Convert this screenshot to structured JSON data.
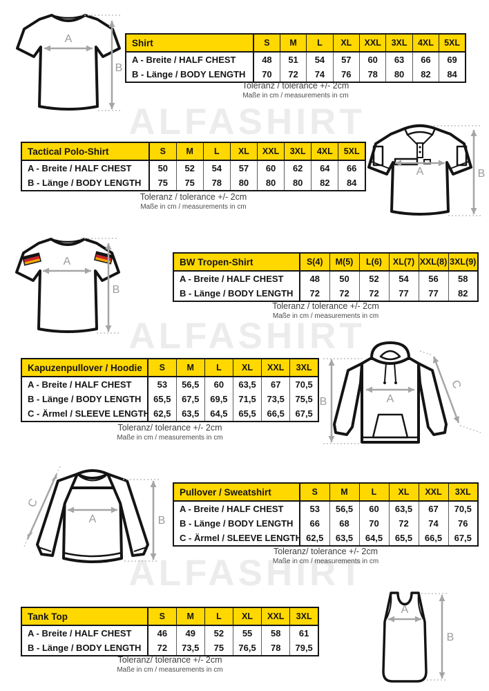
{
  "watermark_text": "ALFASHIRT",
  "arrow_labels": {
    "a": "A",
    "b": "B",
    "c": "C"
  },
  "colors": {
    "header_yellow": "#ffd800",
    "border_black": "#141414",
    "arrow_gray": "#a5a5a5",
    "watermark_gray": "#ececec",
    "flag_black": "#141414",
    "flag_red": "#cc2229",
    "flag_gold": "#f2a800"
  },
  "tables": [
    {
      "title": "Shirt",
      "sizes": [
        "S",
        "M",
        "L",
        "XL",
        "XXL",
        "3XL",
        "4XL",
        "5XL"
      ],
      "rows": [
        {
          "label": "A -  Breite / HALF CHEST",
          "values": [
            "48",
            "51",
            "54",
            "57",
            "60",
            "63",
            "66",
            "69"
          ]
        },
        {
          "label": "B -  Länge / BODY LENGTH",
          "values": [
            "70",
            "72",
            "74",
            "76",
            "78",
            "80",
            "82",
            "84"
          ]
        }
      ],
      "tolerance": "Toleranz / tolerance +/- 2cm",
      "units": "Maße in cm / measurements in cm"
    },
    {
      "title": "Tactical Polo-Shirt",
      "sizes": [
        "S",
        "M",
        "L",
        "XL",
        "XXL",
        "3XL",
        "4XL",
        "5XL"
      ],
      "rows": [
        {
          "label": "A -  Breite / HALF CHEST",
          "values": [
            "50",
            "52",
            "54",
            "57",
            "60",
            "62",
            "64",
            "66"
          ]
        },
        {
          "label": "B -  Länge / BODY LENGTH",
          "values": [
            "75",
            "75",
            "78",
            "80",
            "80",
            "80",
            "82",
            "84"
          ]
        }
      ],
      "tolerance": "Toleranz / tolerance +/- 2cm",
      "units": "Maße in cm / measurements in cm"
    },
    {
      "title": "BW Tropen-Shirt",
      "sizes": [
        "S(4)",
        "M(5)",
        "L(6)",
        "XL(7)",
        "XXL(8)",
        "3XL(9)"
      ],
      "rows": [
        {
          "label": "A -  Breite / HALF CHEST",
          "values": [
            "48",
            "50",
            "52",
            "54",
            "56",
            "58"
          ]
        },
        {
          "label": "B -  Länge / BODY LENGTH",
          "values": [
            "72",
            "72",
            "72",
            "77",
            "77",
            "82"
          ]
        }
      ],
      "tolerance": "Toleranz / tolerance +/- 2cm",
      "units": "Maße in cm / measurements in cm"
    },
    {
      "title": "Kapuzenpullover / Hoodie",
      "sizes": [
        "S",
        "M",
        "L",
        "XL",
        "XXL",
        "3XL"
      ],
      "rows": [
        {
          "label": "A -  Breite / HALF CHEST",
          "values": [
            "53",
            "56,5",
            "60",
            "63,5",
            "67",
            "70,5"
          ]
        },
        {
          "label": "B -  Länge / BODY LENGTH",
          "values": [
            "65,5",
            "67,5",
            "69,5",
            "71,5",
            "73,5",
            "75,5"
          ]
        },
        {
          "label": "C -  Ärmel / SLEEVE LENGTH",
          "values": [
            "62,5",
            "63,5",
            "64,5",
            "65,5",
            "66,5",
            "67,5"
          ]
        }
      ],
      "tolerance": "Toleranz/ tolerance +/- 2cm",
      "units": "Maße in cm / measurements in cm"
    },
    {
      "title": "Pullover / Sweatshirt",
      "sizes": [
        "S",
        "M",
        "L",
        "XL",
        "XXL",
        "3XL"
      ],
      "rows": [
        {
          "label": "A -  Breite / HALF CHEST",
          "values": [
            "53",
            "56,5",
            "60",
            "63,5",
            "67",
            "70,5"
          ]
        },
        {
          "label": "B -  Länge / BODY LENGTH",
          "values": [
            "66",
            "68",
            "70",
            "72",
            "74",
            "76"
          ]
        },
        {
          "label": "C -  Ärmel / SLEEVE LENGTH",
          "values": [
            "62,5",
            "63,5",
            "64,5",
            "65,5",
            "66,5",
            "67,5"
          ]
        }
      ],
      "tolerance": "Toleranz/ tolerance +/- 2cm",
      "units": "Maße in cm / measurements in cm"
    },
    {
      "title": "Tank Top",
      "sizes": [
        "S",
        "M",
        "L",
        "XL",
        "XXL",
        "3XL"
      ],
      "rows": [
        {
          "label": "A -  Breite / HALF CHEST",
          "values": [
            "46",
            "49",
            "52",
            "55",
            "58",
            "61"
          ]
        },
        {
          "label": "B -  Länge / BODY LENGTH",
          "values": [
            "72",
            "73,5",
            "75",
            "76,5",
            "78",
            "79,5"
          ]
        }
      ],
      "tolerance": "Toleranz/ tolerance +/- 2cm",
      "units": "Maße in cm / measurements in cm"
    }
  ]
}
